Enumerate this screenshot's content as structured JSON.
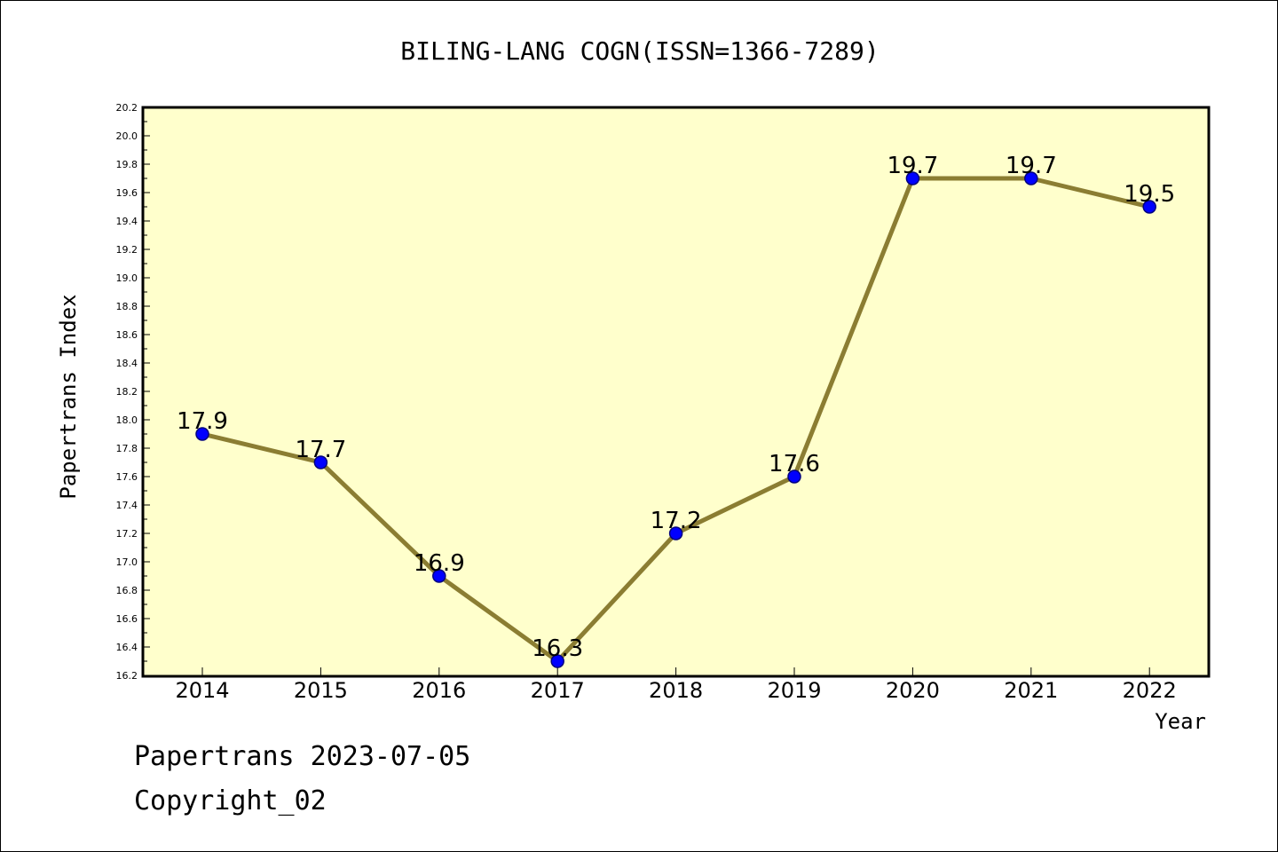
{
  "chart_data": {
    "type": "line",
    "title": "BILING-LANG COGN(ISSN=1366-7289)",
    "xlabel": "Year",
    "ylabel": "Papertrans Index",
    "categories": [
      "2014",
      "2015",
      "2016",
      "2017",
      "2018",
      "2019",
      "2020",
      "2021",
      "2022"
    ],
    "values": [
      17.9,
      17.7,
      16.9,
      16.3,
      17.2,
      17.6,
      19.7,
      19.7,
      19.5
    ],
    "data_labels": [
      "17.9",
      "17.7",
      "16.9",
      "16.3",
      "17.2",
      "17.6",
      "19.7",
      "19.7",
      "19.5"
    ],
    "ylim": [
      16.2,
      20.2
    ],
    "yticks": [
      "16.2",
      "16.4",
      "16.6",
      "16.8",
      "17.0",
      "17.2",
      "17.4",
      "17.6",
      "17.8",
      "18.0",
      "18.2",
      "18.4",
      "18.6",
      "18.8",
      "19.0",
      "19.2",
      "19.4",
      "19.6",
      "19.8",
      "20.0",
      "20.2"
    ],
    "grid": false,
    "legend": "none",
    "colors": {
      "plot_background": "#ffffcc",
      "line": "#8b7d32",
      "marker_fill": "#0000ff",
      "marker_edge": "#000080"
    }
  },
  "footer": {
    "line1": "Papertrans 2023-07-05",
    "line2": "Copyright_02"
  }
}
